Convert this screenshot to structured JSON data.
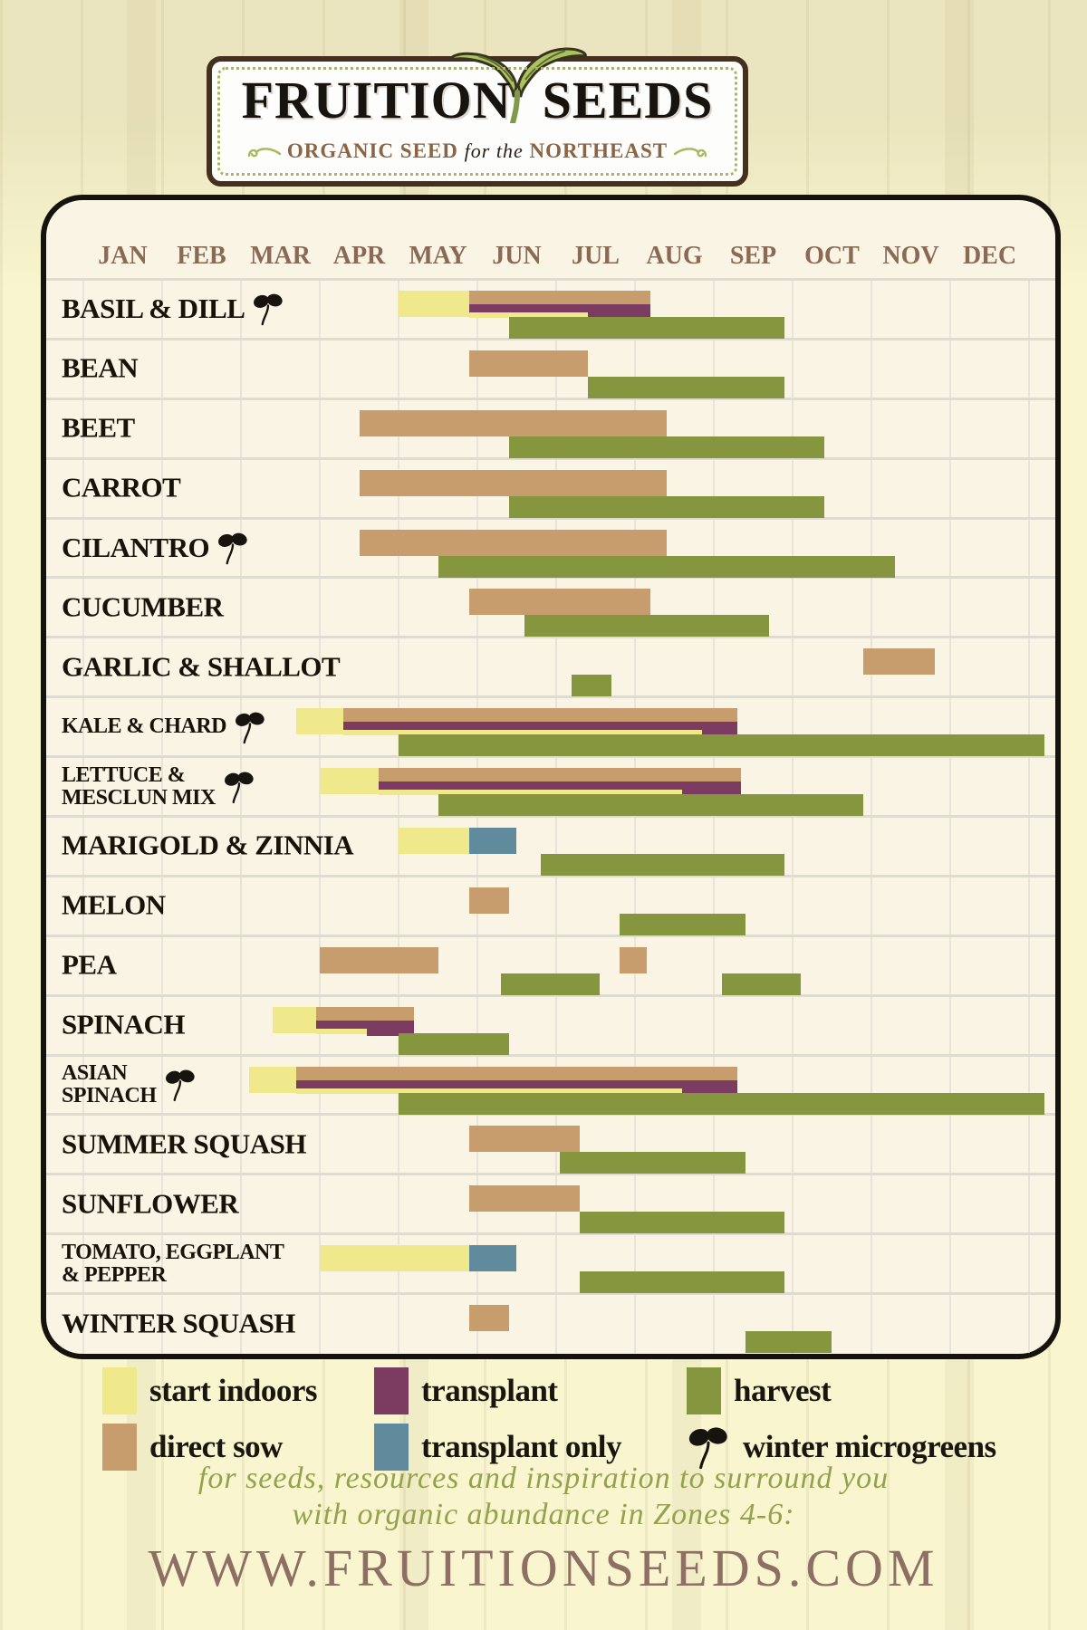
{
  "logo": {
    "title_left": "FRUITION",
    "title_right": "SEEDS",
    "tagline_prefix": "ORGANIC SEED",
    "tagline_middle": "for the",
    "tagline_suffix": "NORTHEAST"
  },
  "months": [
    "JAN",
    "FEB",
    "MAR",
    "APR",
    "MAY",
    "JUN",
    "JUL",
    "AUG",
    "SEP",
    "OCT",
    "NOV",
    "DEC"
  ],
  "colors": {
    "start_indoors": "#f0e98c",
    "direct_sow": "#c79d6d",
    "transplant": "#7c3b60",
    "transplant_only": "#5f8b9c",
    "harvest": "#85963e",
    "chart_bg": "#faf4e5",
    "month_label": "#8a6a55",
    "grid_line": "#e7e4da",
    "chart_border": "#16120d",
    "label_text": "#181309",
    "script_text": "#95a24c",
    "url_text": "#8d7063",
    "logo_border": "#43301f",
    "logo_accent_green": "#a9b85c"
  },
  "chart_data": {
    "type": "bar",
    "variant": "gantt_planting_timeline",
    "x_axis": {
      "labels": [
        "JAN",
        "FEB",
        "MAR",
        "APR",
        "MAY",
        "JUN",
        "JUL",
        "AUG",
        "SEP",
        "OCT",
        "NOV",
        "DEC"
      ],
      "range": [
        0,
        12
      ],
      "unit": "month index, 0 = Jan 1, 12 = Dec 31"
    },
    "legend_position": "bottom",
    "grid": true,
    "categories": [
      "BASIL & DILL",
      "BEAN",
      "BEET",
      "CARROT",
      "CILANTRO",
      "CUCUMBER",
      "GARLIC & SHALLOT",
      "KALE & CHARD",
      "LETTUCE & MESCLUN MIX",
      "MARIGOLD & ZINNIA",
      "MELON",
      "PEA",
      "SPINACH",
      "ASIAN SPINACH",
      "SUMMER SQUASH",
      "SUNFLOWER",
      "TOMATO, EGGPLANT & PEPPER",
      "WINTER SQUASH"
    ],
    "rows": [
      {
        "label": [
          "BASIL & DILL"
        ],
        "microgreens": true,
        "size": "lg",
        "bars": [
          {
            "type": "start_indoors",
            "lane": "sow-tall",
            "start": 4.0,
            "end": 4.9
          },
          {
            "type": "direct_sow",
            "lane": "sow",
            "start": 4.9,
            "end": 7.2
          },
          {
            "type": "transplant",
            "lane": "stripe",
            "start": 4.9,
            "end": 7.2
          },
          {
            "type": "start_indoors",
            "lane": "stripe2",
            "start": 4.9,
            "end": 6.4
          },
          {
            "type": "transplant",
            "lane": "block",
            "start": 6.4,
            "end": 7.2
          },
          {
            "type": "harvest",
            "lane": "harvest",
            "start": 5.4,
            "end": 8.9
          }
        ]
      },
      {
        "label": [
          "BEAN"
        ],
        "microgreens": false,
        "size": "lg",
        "bars": [
          {
            "type": "direct_sow",
            "lane": "sow-tall",
            "start": 4.9,
            "end": 6.4
          },
          {
            "type": "harvest",
            "lane": "harvest",
            "start": 6.4,
            "end": 8.9
          }
        ]
      },
      {
        "label": [
          "BEET"
        ],
        "microgreens": false,
        "size": "lg",
        "bars": [
          {
            "type": "direct_sow",
            "lane": "sow-tall",
            "start": 3.5,
            "end": 7.4
          },
          {
            "type": "harvest",
            "lane": "harvest",
            "start": 5.4,
            "end": 9.4
          }
        ]
      },
      {
        "label": [
          "CARROT"
        ],
        "microgreens": false,
        "size": "lg",
        "bars": [
          {
            "type": "direct_sow",
            "lane": "sow-tall",
            "start": 3.5,
            "end": 7.4
          },
          {
            "type": "harvest",
            "lane": "harvest",
            "start": 5.4,
            "end": 9.4
          }
        ]
      },
      {
        "label": [
          "CILANTRO"
        ],
        "microgreens": true,
        "size": "lg",
        "bars": [
          {
            "type": "direct_sow",
            "lane": "sow-tall",
            "start": 3.5,
            "end": 7.4
          },
          {
            "type": "harvest",
            "lane": "harvest",
            "start": 4.5,
            "end": 10.3
          }
        ]
      },
      {
        "label": [
          "CUCUMBER"
        ],
        "microgreens": false,
        "size": "lg",
        "bars": [
          {
            "type": "direct_sow",
            "lane": "sow-tall",
            "start": 4.9,
            "end": 7.2
          },
          {
            "type": "harvest",
            "lane": "harvest",
            "start": 5.6,
            "end": 8.7
          }
        ]
      },
      {
        "label": [
          "GARLIC & SHALLOT"
        ],
        "microgreens": false,
        "size": "lg",
        "bars": [
          {
            "type": "direct_sow",
            "lane": "sow-tall",
            "start": 9.9,
            "end": 10.8
          },
          {
            "type": "harvest",
            "lane": "harvest",
            "start": 6.2,
            "end": 6.7
          }
        ]
      },
      {
        "label": [
          "KALE & CHARD"
        ],
        "microgreens": true,
        "size": "sm",
        "bars": [
          {
            "type": "start_indoors",
            "lane": "sow-tall",
            "start": 2.7,
            "end": 3.3
          },
          {
            "type": "direct_sow",
            "lane": "sow",
            "start": 3.3,
            "end": 8.3
          },
          {
            "type": "transplant",
            "lane": "stripe",
            "start": 3.3,
            "end": 8.3
          },
          {
            "type": "start_indoors",
            "lane": "stripe2",
            "start": 3.3,
            "end": 7.85
          },
          {
            "type": "transplant",
            "lane": "block",
            "start": 7.85,
            "end": 8.3
          },
          {
            "type": "harvest",
            "lane": "harvest",
            "start": 4.0,
            "end": 12.0
          }
        ]
      },
      {
        "label": [
          "LETTUCE &",
          "MESCLUN MIX"
        ],
        "microgreens": true,
        "size": "sm",
        "bars": [
          {
            "type": "start_indoors",
            "lane": "sow-tall",
            "start": 3.0,
            "end": 3.75
          },
          {
            "type": "direct_sow",
            "lane": "sow",
            "start": 3.75,
            "end": 8.35
          },
          {
            "type": "transplant",
            "lane": "stripe",
            "start": 3.75,
            "end": 8.35
          },
          {
            "type": "start_indoors",
            "lane": "stripe2",
            "start": 3.75,
            "end": 7.6
          },
          {
            "type": "transplant",
            "lane": "block",
            "start": 7.6,
            "end": 8.35
          },
          {
            "type": "harvest",
            "lane": "harvest",
            "start": 4.5,
            "end": 9.9
          }
        ]
      },
      {
        "label": [
          "MARIGOLD & ZINNIA"
        ],
        "microgreens": false,
        "size": "lg",
        "bars": [
          {
            "type": "start_indoors",
            "lane": "sow-tall",
            "start": 4.0,
            "end": 4.9
          },
          {
            "type": "transplant_only",
            "lane": "sow-tall",
            "start": 4.9,
            "end": 5.5
          },
          {
            "type": "harvest",
            "lane": "harvest",
            "start": 5.8,
            "end": 8.9
          }
        ]
      },
      {
        "label": [
          "MELON"
        ],
        "microgreens": false,
        "size": "lg",
        "bars": [
          {
            "type": "direct_sow",
            "lane": "sow-tall",
            "start": 4.9,
            "end": 5.4
          },
          {
            "type": "harvest",
            "lane": "harvest",
            "start": 6.8,
            "end": 8.4
          }
        ]
      },
      {
        "label": [
          "PEA"
        ],
        "microgreens": false,
        "size": "lg",
        "bars": [
          {
            "type": "direct_sow",
            "lane": "sow-tall",
            "start": 3.0,
            "end": 4.5
          },
          {
            "type": "direct_sow",
            "lane": "sow-tall",
            "start": 6.8,
            "end": 7.15
          },
          {
            "type": "harvest",
            "lane": "harvest",
            "start": 5.3,
            "end": 6.55
          },
          {
            "type": "harvest",
            "lane": "harvest",
            "start": 8.1,
            "end": 9.1
          }
        ]
      },
      {
        "label": [
          "SPINACH"
        ],
        "microgreens": false,
        "size": "lg",
        "bars": [
          {
            "type": "start_indoors",
            "lane": "sow-tall",
            "start": 2.4,
            "end": 2.95
          },
          {
            "type": "direct_sow",
            "lane": "sow",
            "start": 2.95,
            "end": 4.2
          },
          {
            "type": "transplant",
            "lane": "stripe",
            "start": 2.95,
            "end": 4.2
          },
          {
            "type": "start_indoors",
            "lane": "stripe2",
            "start": 2.95,
            "end": 3.6
          },
          {
            "type": "transplant",
            "lane": "block",
            "start": 3.6,
            "end": 4.2
          },
          {
            "type": "harvest",
            "lane": "harvest",
            "start": 4.0,
            "end": 5.4
          }
        ]
      },
      {
        "label": [
          "ASIAN",
          "SPINACH"
        ],
        "microgreens": true,
        "size": "sm",
        "bars": [
          {
            "type": "start_indoors",
            "lane": "sow-tall",
            "start": 2.1,
            "end": 2.7
          },
          {
            "type": "direct_sow",
            "lane": "sow",
            "start": 2.7,
            "end": 8.3
          },
          {
            "type": "transplant",
            "lane": "stripe",
            "start": 2.7,
            "end": 8.3
          },
          {
            "type": "start_indoors",
            "lane": "stripe2",
            "start": 2.7,
            "end": 7.6
          },
          {
            "type": "transplant",
            "lane": "block",
            "start": 7.6,
            "end": 8.3
          },
          {
            "type": "harvest",
            "lane": "harvest",
            "start": 4.0,
            "end": 12.0
          }
        ]
      },
      {
        "label": [
          "SUMMER SQUASH"
        ],
        "microgreens": false,
        "size": "lg",
        "bars": [
          {
            "type": "direct_sow",
            "lane": "sow-tall",
            "start": 4.9,
            "end": 6.3
          },
          {
            "type": "harvest",
            "lane": "harvest",
            "start": 6.05,
            "end": 8.4
          }
        ]
      },
      {
        "label": [
          "SUNFLOWER"
        ],
        "microgreens": false,
        "size": "lg",
        "bars": [
          {
            "type": "direct_sow",
            "lane": "sow-tall",
            "start": 4.9,
            "end": 6.3
          },
          {
            "type": "harvest",
            "lane": "harvest",
            "start": 6.3,
            "end": 8.9
          }
        ]
      },
      {
        "label": [
          "TOMATO, EGGPLANT",
          "& PEPPER"
        ],
        "microgreens": false,
        "size": "sm",
        "bars": [
          {
            "type": "start_indoors",
            "lane": "sow-tall",
            "start": 3.0,
            "end": 4.9
          },
          {
            "type": "transplant_only",
            "lane": "sow-tall",
            "start": 4.9,
            "end": 5.5
          },
          {
            "type": "harvest",
            "lane": "harvest",
            "start": 6.3,
            "end": 8.9
          }
        ]
      },
      {
        "label": [
          "WINTER SQUASH"
        ],
        "microgreens": false,
        "size": "lg",
        "bars": [
          {
            "type": "direct_sow",
            "lane": "sow-tall",
            "start": 4.9,
            "end": 5.4
          },
          {
            "type": "harvest",
            "lane": "harvest",
            "start": 8.4,
            "end": 9.5
          }
        ]
      }
    ]
  },
  "legend": {
    "rows": [
      [
        {
          "key": "start_indoors",
          "label": "start indoors"
        },
        {
          "key": "transplant",
          "label": "transplant"
        },
        {
          "key": "harvest",
          "label": "harvest"
        }
      ],
      [
        {
          "key": "direct_sow",
          "label": "direct sow"
        },
        {
          "key": "transplant_only",
          "label": "transplant only"
        },
        {
          "key": "winter_microgreens",
          "label": "winter microgreens",
          "icon": "sprout-icon"
        }
      ]
    ]
  },
  "footer": {
    "line1": "for seeds, resources and inspiration to surround you",
    "line2": "with organic abundance in Zones 4-6:",
    "url": "WWW.FRUITIONSEEDS.COM"
  }
}
